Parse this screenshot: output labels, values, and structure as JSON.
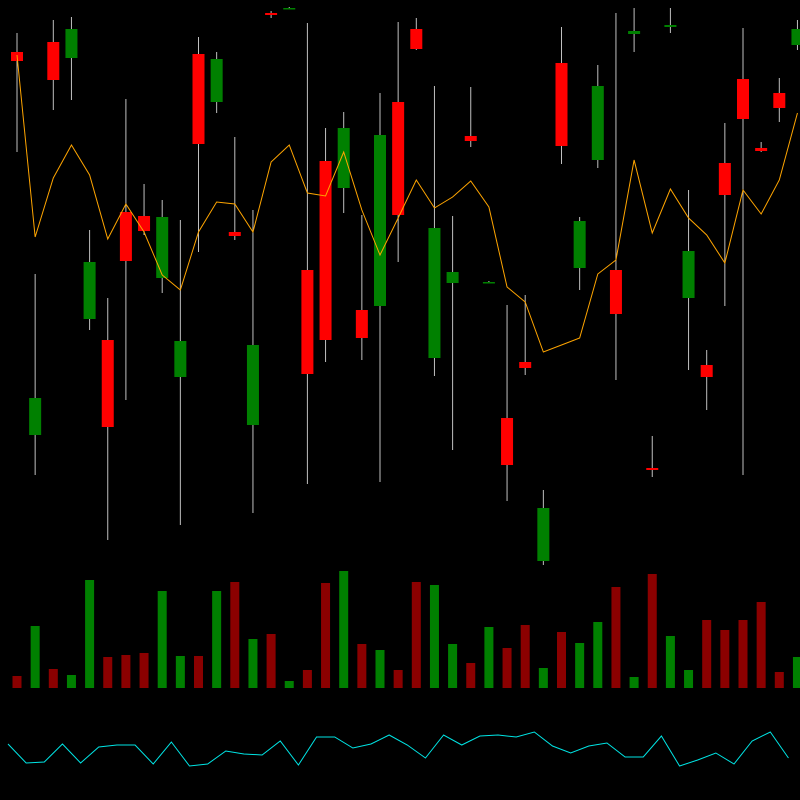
{
  "chart_data": [
    {
      "type": "candlestick",
      "open": [
        748,
        365,
        758,
        742,
        481,
        460,
        588,
        584,
        522,
        423,
        746,
        698,
        568,
        375,
        787,
        792,
        530,
        639,
        612,
        490,
        494,
        698,
        771,
        442,
        517,
        664,
        518,
        382,
        438,
        239,
        737,
        532,
        640,
        530,
        766,
        332,
        773,
        502,
        435,
        637,
        721,
        652,
        707,
        755
      ],
      "high": [
        767,
        526,
        780,
        783,
        570,
        502,
        701,
        616,
        600,
        580,
        763,
        748,
        663,
        590,
        789,
        793,
        777,
        672,
        688,
        585,
        707,
        778,
        782,
        714,
        584,
        713,
        519,
        495,
        505,
        310,
        773,
        583,
        735,
        787,
        792,
        364,
        792,
        610,
        450,
        677,
        772,
        658,
        722,
        780
      ],
      "low": [
        648,
        325,
        690,
        700,
        470,
        260,
        400,
        565,
        507,
        275,
        548,
        687,
        560,
        287,
        782,
        791,
        316,
        438,
        587,
        440,
        318,
        538,
        750,
        424,
        350,
        653,
        517,
        299,
        425,
        235,
        636,
        510,
        632,
        420,
        748,
        323,
        767,
        430,
        390,
        494,
        325,
        648,
        678,
        750
      ],
      "close": [
        739,
        402,
        720,
        771,
        538,
        373,
        539,
        569,
        583,
        459,
        656,
        741,
        564,
        455,
        785,
        792,
        426,
        460,
        672,
        462,
        665,
        585,
        751,
        572,
        528,
        659,
        518,
        335,
        432,
        292,
        654,
        579,
        714,
        486,
        769,
        330,
        775,
        549,
        423,
        605,
        681,
        649,
        692,
        771
      ],
      "up_color": "#008000",
      "down_color": "#ff0000",
      "wick_color": "#c0c0c0",
      "ylim": [
        0,
        800
      ],
      "line": {
        "color": "#ffa500",
        "values": [
          745,
          563,
          622,
          655,
          625,
          561,
          596,
          568,
          525,
          510,
          568,
          598,
          596,
          568,
          638,
          655,
          607,
          604,
          648,
          590,
          545,
          582,
          620,
          592,
          603,
          619,
          593,
          513,
          498,
          448,
          455,
          462,
          526,
          540,
          640,
          567,
          611,
          582,
          565,
          537,
          610,
          586,
          620,
          687
        ]
      }
    },
    {
      "type": "bar",
      "values": [
        12,
        62,
        19,
        13,
        108,
        31,
        33,
        35,
        97,
        32,
        32,
        97,
        106,
        49,
        54,
        7,
        18,
        105,
        117,
        44,
        38,
        18,
        106,
        103,
        44,
        25,
        61,
        40,
        63,
        20,
        56,
        45,
        66,
        101,
        11,
        114,
        52,
        18,
        68,
        58,
        68,
        86,
        16,
        31
      ],
      "up_color": "#008000",
      "down_color": "#8b0000",
      "ylim": [
        0,
        130
      ]
    },
    {
      "type": "line",
      "color": "#00e5e5",
      "values": [
        56,
        37,
        38,
        56,
        37,
        53,
        55,
        55,
        36,
        58,
        34,
        36,
        49,
        46,
        45,
        59,
        35,
        63,
        63,
        52,
        56,
        65,
        55,
        42,
        65,
        55,
        64,
        65,
        63,
        68,
        54,
        47,
        54,
        57,
        43,
        43,
        64,
        34,
        40,
        47,
        36,
        59,
        68,
        42
      ],
      "ylim": [
        0,
        100
      ]
    }
  ]
}
